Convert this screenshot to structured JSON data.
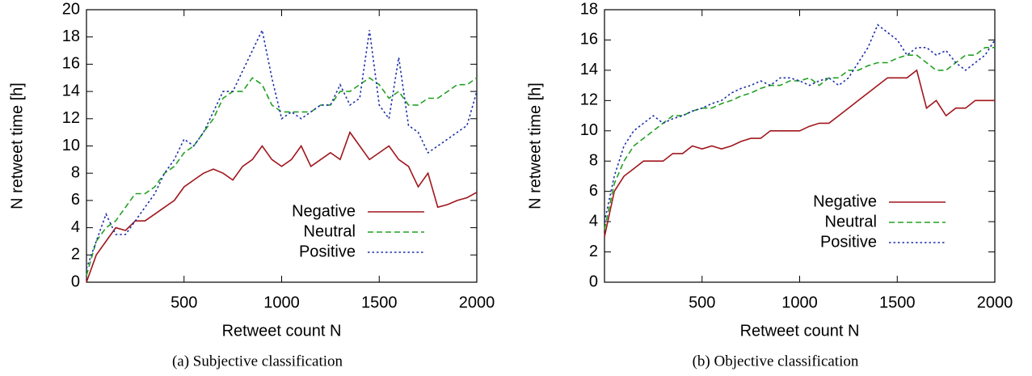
{
  "chart_data": [
    {
      "type": "line",
      "caption": "(a) Subjective classification",
      "xlabel": "Retweet count N",
      "ylabel": "N retweet time [h]",
      "xlim": [
        0,
        2000
      ],
      "xticks": [
        500,
        1000,
        1500,
        2000
      ],
      "ylim": [
        0,
        20
      ],
      "yticks": [
        0,
        2,
        4,
        6,
        8,
        10,
        12,
        14,
        16,
        18,
        20
      ],
      "x": [
        0,
        50,
        100,
        150,
        200,
        250,
        300,
        350,
        400,
        450,
        500,
        550,
        600,
        650,
        700,
        750,
        800,
        850,
        900,
        950,
        1000,
        1050,
        1100,
        1150,
        1200,
        1250,
        1300,
        1350,
        1400,
        1450,
        1500,
        1550,
        1600,
        1650,
        1700,
        1750,
        1800,
        1850,
        1900,
        1950,
        2000
      ],
      "series": [
        {
          "name": "Negative",
          "color": "#a0161c",
          "style": "solid",
          "values": [
            0,
            2,
            3,
            4,
            3.8,
            4.5,
            4.5,
            5,
            5.5,
            6,
            7,
            7.5,
            8,
            8.3,
            8,
            7.5,
            8.5,
            9,
            10,
            9,
            8.5,
            9,
            10,
            8.5,
            9,
            9.5,
            9,
            11,
            10,
            9,
            9.5,
            10,
            9,
            8.5,
            7,
            8,
            5.5,
            5.7,
            6,
            6.2,
            6.6
          ]
        },
        {
          "name": "Neutral",
          "color": "#22a022",
          "style": "dashed",
          "values": [
            0.5,
            3,
            4,
            4.5,
            5.5,
            6.5,
            6.5,
            7,
            8,
            8.5,
            9.5,
            10,
            11,
            12,
            13.5,
            14,
            14,
            15,
            14.5,
            13,
            12.5,
            12.5,
            12.5,
            12.5,
            13,
            13,
            14,
            14,
            14.5,
            15,
            14.5,
            13.5,
            14,
            13,
            13,
            13.5,
            13.5,
            14,
            14.5,
            14.5,
            15
          ]
        },
        {
          "name": "Positive",
          "color": "#1c2fa8",
          "style": "dotted",
          "values": [
            1,
            3,
            5,
            3.5,
            3.5,
            4.5,
            5.5,
            6.5,
            8,
            9,
            10.5,
            10,
            11,
            12.5,
            14,
            14,
            15.5,
            17,
            18.5,
            15,
            12,
            12.5,
            12,
            12.5,
            13,
            13,
            14.5,
            13,
            13.5,
            18.5,
            13,
            12,
            16.5,
            11.5,
            11,
            9.5,
            10,
            10.5,
            11,
            11.5,
            14
          ]
        }
      ]
    },
    {
      "type": "line",
      "caption": "(b) Objective classification",
      "xlabel": "Retweet count N",
      "ylabel": "N retweet time [h]",
      "xlim": [
        0,
        2000
      ],
      "xticks": [
        500,
        1000,
        1500,
        2000
      ],
      "ylim": [
        0,
        18
      ],
      "yticks": [
        0,
        2,
        4,
        6,
        8,
        10,
        12,
        14,
        16,
        18
      ],
      "x": [
        0,
        50,
        100,
        150,
        200,
        250,
        300,
        350,
        400,
        450,
        500,
        550,
        600,
        650,
        700,
        750,
        800,
        850,
        900,
        950,
        1000,
        1050,
        1100,
        1150,
        1200,
        1250,
        1300,
        1350,
        1400,
        1450,
        1500,
        1550,
        1600,
        1650,
        1700,
        1750,
        1800,
        1850,
        1900,
        1950,
        2000
      ],
      "series": [
        {
          "name": "Negative",
          "color": "#a0161c",
          "style": "solid",
          "values": [
            3,
            6,
            7,
            7.5,
            8,
            8,
            8,
            8.5,
            8.5,
            9,
            8.8,
            9,
            8.8,
            9,
            9.3,
            9.5,
            9.5,
            10,
            10,
            10,
            10,
            10.3,
            10.5,
            10.5,
            11,
            11.5,
            12,
            12.5,
            13,
            13.5,
            13.5,
            13.5,
            14,
            11.5,
            12,
            11,
            11.5,
            11.5,
            12,
            12,
            12
          ]
        },
        {
          "name": "Neutral",
          "color": "#22a022",
          "style": "dashed",
          "values": [
            3.5,
            6.5,
            8,
            9,
            9.5,
            10,
            10.5,
            11,
            11,
            11.3,
            11.5,
            11.5,
            11.8,
            12,
            12.3,
            12.5,
            12.8,
            13,
            13,
            13.3,
            13.3,
            13.5,
            13,
            13.5,
            13.5,
            14,
            14,
            14.3,
            14.5,
            14.5,
            14.8,
            15,
            15,
            14.5,
            14,
            14,
            14.5,
            15,
            15,
            15.5,
            15.5
          ]
        },
        {
          "name": "Positive",
          "color": "#1c2fa8",
          "style": "dotted",
          "values": [
            4,
            7,
            9,
            10,
            10.5,
            11,
            10.5,
            10.8,
            11,
            11.3,
            11.5,
            11.8,
            12,
            12.5,
            12.8,
            13,
            13.3,
            13,
            13.5,
            13.5,
            13.3,
            13,
            13.3,
            13.5,
            13,
            13.5,
            14.5,
            15.5,
            17,
            16.5,
            16,
            15,
            15.5,
            15.5,
            15,
            15.3,
            14.5,
            14,
            14.5,
            15,
            16
          ]
        }
      ]
    }
  ]
}
